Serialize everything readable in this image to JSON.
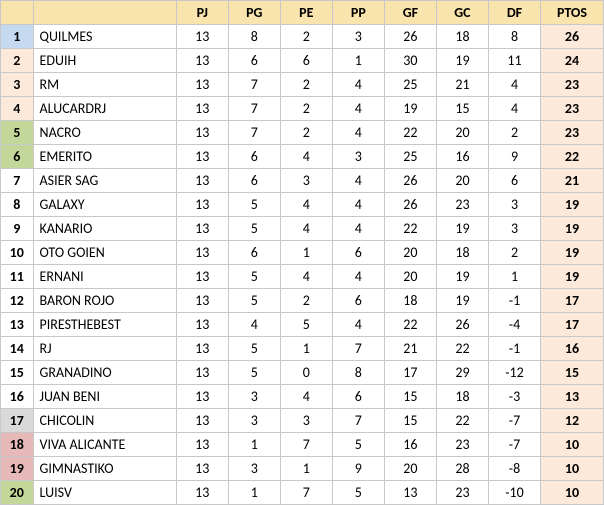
{
  "colors": {
    "header_bg": "#f8e4ac",
    "ptos_bg": "#fde9d9",
    "plain_bg": "#ffffff",
    "text": "#000000",
    "border": "#c8c8c8"
  },
  "rank_zones": [
    {
      "from": 1,
      "to": 1,
      "bg": "#c5d9f1"
    },
    {
      "from": 2,
      "to": 4,
      "bg": "#fde9d9"
    },
    {
      "from": 5,
      "to": 6,
      "bg": "#c4d79b"
    },
    {
      "from": 7,
      "to": 16,
      "bg": "#ffffff"
    },
    {
      "from": 17,
      "to": 17,
      "bg": "#d9d9d9"
    },
    {
      "from": 18,
      "to": 19,
      "bg": "#e6b9b8"
    },
    {
      "from": 20,
      "to": 20,
      "bg": "#c4d79b"
    }
  ],
  "columns": [
    "PJ",
    "PG",
    "PE",
    "PP",
    "GF",
    "GC",
    "DF",
    "PTOS"
  ],
  "rows": [
    {
      "rank": 1,
      "team": "QUILMES",
      "PJ": 13,
      "PG": 8,
      "PE": 2,
      "PP": 3,
      "GF": 26,
      "GC": 18,
      "DF": 8,
      "PTOS": 26
    },
    {
      "rank": 2,
      "team": "EDUIH",
      "PJ": 13,
      "PG": 6,
      "PE": 6,
      "PP": 1,
      "GF": 30,
      "GC": 19,
      "DF": 11,
      "PTOS": 24
    },
    {
      "rank": 3,
      "team": "RM",
      "PJ": 13,
      "PG": 7,
      "PE": 2,
      "PP": 4,
      "GF": 25,
      "GC": 21,
      "DF": 4,
      "PTOS": 23
    },
    {
      "rank": 4,
      "team": "ALUCARDRJ",
      "PJ": 13,
      "PG": 7,
      "PE": 2,
      "PP": 4,
      "GF": 19,
      "GC": 15,
      "DF": 4,
      "PTOS": 23
    },
    {
      "rank": 5,
      "team": "NACRO",
      "PJ": 13,
      "PG": 7,
      "PE": 2,
      "PP": 4,
      "GF": 22,
      "GC": 20,
      "DF": 2,
      "PTOS": 23
    },
    {
      "rank": 6,
      "team": "EMERITO",
      "PJ": 13,
      "PG": 6,
      "PE": 4,
      "PP": 3,
      "GF": 25,
      "GC": 16,
      "DF": 9,
      "PTOS": 22
    },
    {
      "rank": 7,
      "team": "ASIER SAG",
      "PJ": 13,
      "PG": 6,
      "PE": 3,
      "PP": 4,
      "GF": 26,
      "GC": 20,
      "DF": 6,
      "PTOS": 21
    },
    {
      "rank": 8,
      "team": "GALAXY",
      "PJ": 13,
      "PG": 5,
      "PE": 4,
      "PP": 4,
      "GF": 26,
      "GC": 23,
      "DF": 3,
      "PTOS": 19
    },
    {
      "rank": 9,
      "team": "KANARIO",
      "PJ": 13,
      "PG": 5,
      "PE": 4,
      "PP": 4,
      "GF": 22,
      "GC": 19,
      "DF": 3,
      "PTOS": 19
    },
    {
      "rank": 10,
      "team": "OTO GOIEN",
      "PJ": 13,
      "PG": 6,
      "PE": 1,
      "PP": 6,
      "GF": 20,
      "GC": 18,
      "DF": 2,
      "PTOS": 19
    },
    {
      "rank": 11,
      "team": "ERNANI",
      "PJ": 13,
      "PG": 5,
      "PE": 4,
      "PP": 4,
      "GF": 20,
      "GC": 19,
      "DF": 1,
      "PTOS": 19
    },
    {
      "rank": 12,
      "team": "BARON ROJO",
      "PJ": 13,
      "PG": 5,
      "PE": 2,
      "PP": 6,
      "GF": 18,
      "GC": 19,
      "DF": -1,
      "PTOS": 17
    },
    {
      "rank": 13,
      "team": "PIRESTHEBEST",
      "PJ": 13,
      "PG": 4,
      "PE": 5,
      "PP": 4,
      "GF": 22,
      "GC": 26,
      "DF": -4,
      "PTOS": 17
    },
    {
      "rank": 14,
      "team": "RJ",
      "PJ": 13,
      "PG": 5,
      "PE": 1,
      "PP": 7,
      "GF": 21,
      "GC": 22,
      "DF": -1,
      "PTOS": 16
    },
    {
      "rank": 15,
      "team": "GRANADINO",
      "PJ": 13,
      "PG": 5,
      "PE": 0,
      "PP": 8,
      "GF": 17,
      "GC": 29,
      "DF": -12,
      "PTOS": 15
    },
    {
      "rank": 16,
      "team": "JUAN BENI",
      "PJ": 13,
      "PG": 3,
      "PE": 4,
      "PP": 6,
      "GF": 15,
      "GC": 18,
      "DF": -3,
      "PTOS": 13
    },
    {
      "rank": 17,
      "team": "CHICOLIN",
      "PJ": 13,
      "PG": 3,
      "PE": 3,
      "PP": 7,
      "GF": 15,
      "GC": 22,
      "DF": -7,
      "PTOS": 12
    },
    {
      "rank": 18,
      "team": "VIVA ALICANTE",
      "PJ": 13,
      "PG": 1,
      "PE": 7,
      "PP": 5,
      "GF": 16,
      "GC": 23,
      "DF": -7,
      "PTOS": 10
    },
    {
      "rank": 19,
      "team": "GIMNASTIKO",
      "PJ": 13,
      "PG": 3,
      "PE": 1,
      "PP": 9,
      "GF": 20,
      "GC": 28,
      "DF": -8,
      "PTOS": 10
    },
    {
      "rank": 20,
      "team": "LUISV",
      "PJ": 13,
      "PG": 1,
      "PE": 7,
      "PP": 5,
      "GF": 13,
      "GC": 23,
      "DF": -10,
      "PTOS": 10
    }
  ]
}
